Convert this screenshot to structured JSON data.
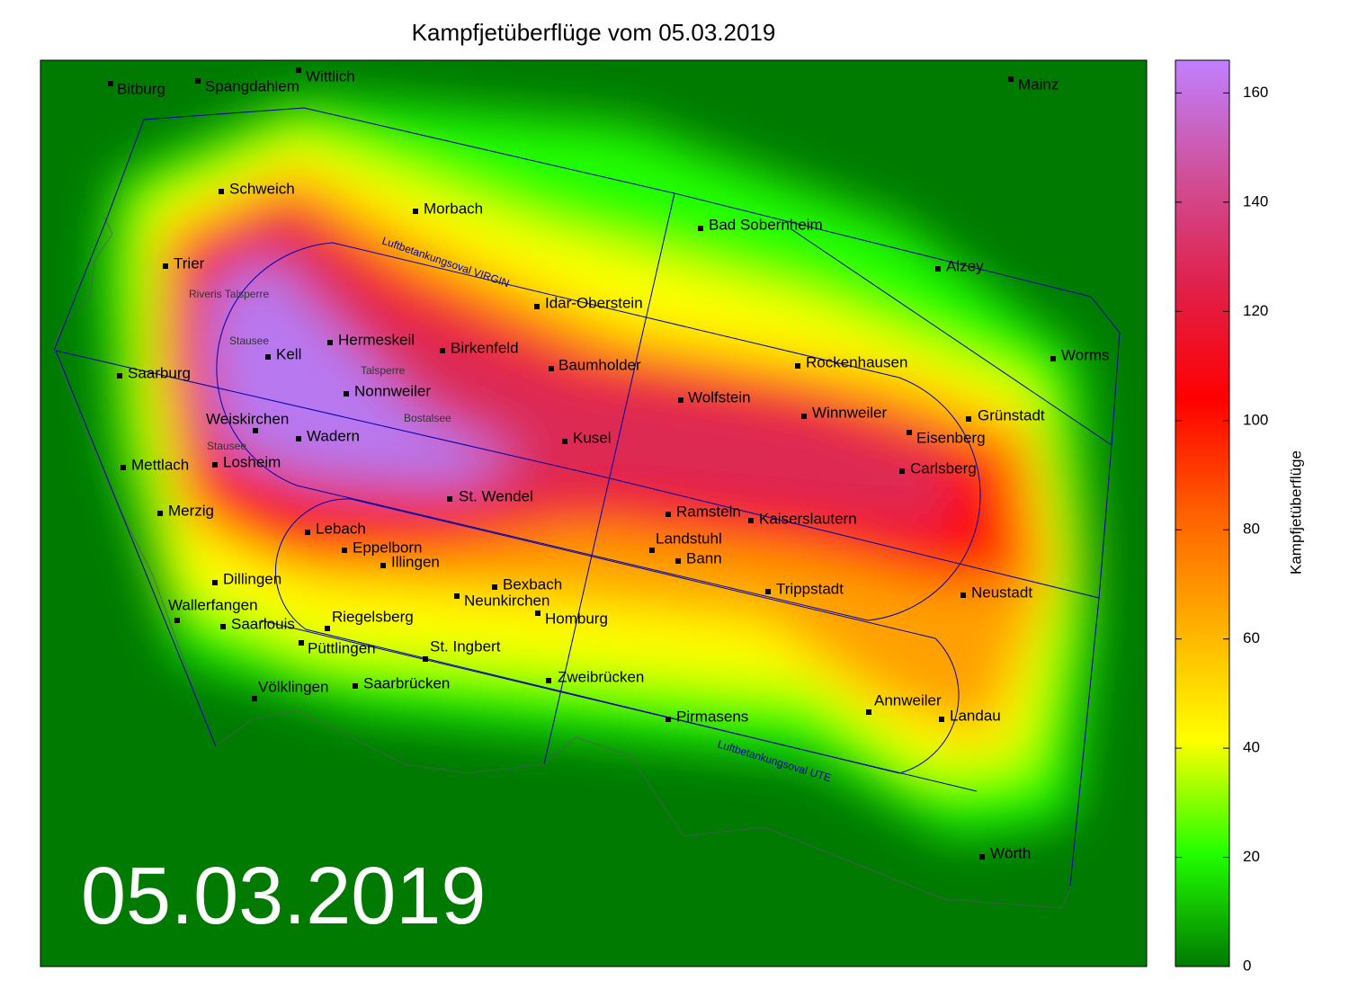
{
  "title": "Kampfjetüberflüge vom 05.03.2019",
  "date_label": "05.03.2019",
  "colorbar": {
    "label": "Kampfjetüberflüge",
    "lim": [
      0,
      166
    ],
    "ticks": [
      0,
      20,
      40,
      60,
      80,
      100,
      120,
      140,
      160
    ],
    "colors": [
      "#007a00",
      "#22ff00",
      "#ffff00",
      "#ffb000",
      "#ff6000",
      "#ff0000",
      "#e0204a",
      "#d0509a",
      "#c080ff"
    ]
  },
  "cities": [
    "Bitburg",
    "Spangdahlem",
    "Wittlich",
    "Mainz",
    "Schweich",
    "Morbach",
    "Bad Sobernheim",
    "Trier",
    "Alzey",
    "Idar-Oberstein",
    "Hermeskeil",
    "Birkenfeld",
    "Kell",
    "Worms",
    "Saarburg",
    "Baumholder",
    "Rockenhausen",
    "Nonnweiler",
    "Wolfstein",
    "Winnweiler",
    "Grünstadt",
    "Weiskirchen",
    "Eisenberg",
    "Wadern",
    "Kusel",
    "Losheim",
    "Mettlach",
    "Carlsberg",
    "St. Wendel",
    "Merzig",
    "Ramstein",
    "Kaiserslautern",
    "Lebach",
    "Landstuhl",
    "Eppelborn",
    "Bann",
    "Illingen",
    "Dillingen",
    "Bexbach",
    "Trippstadt",
    "Neustadt",
    "Neunkirchen",
    "Wallerfangen",
    "Homburg",
    "Saarlouis",
    "Riegelsberg",
    "Püttlingen",
    "St. Ingbert",
    "Zweibrücken",
    "Saarbrücken",
    "Völklingen",
    "Annweiler",
    "Landau",
    "Pirmasens",
    "Wörth"
  ],
  "lakes": [
    "Riveris Talsperre",
    "Stausee",
    "Talsperre",
    "Bostalsee",
    "Stausee"
  ],
  "routes": [
    "Luftbetankungsoval VIRGIN",
    "Luftbetankungsoval UTE"
  ]
}
